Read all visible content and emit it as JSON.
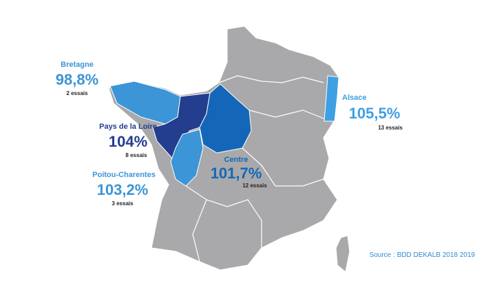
{
  "regions": [
    {
      "name": "Bretagne",
      "value": "98,8%",
      "trials": "2 essais"
    },
    {
      "name": "Pays de la Loire",
      "value": "104%",
      "trials": "8 essais"
    },
    {
      "name": "Poitou-Charentes",
      "value": "103,2%",
      "trials": "3 essais"
    },
    {
      "name": "Centre",
      "value": "101,7%",
      "trials": "12 essais"
    },
    {
      "name": "Alsace",
      "value": "105,5%",
      "trials": "13 essais"
    }
  ],
  "source": "Source : BDD DEKALB 2018 2019"
}
